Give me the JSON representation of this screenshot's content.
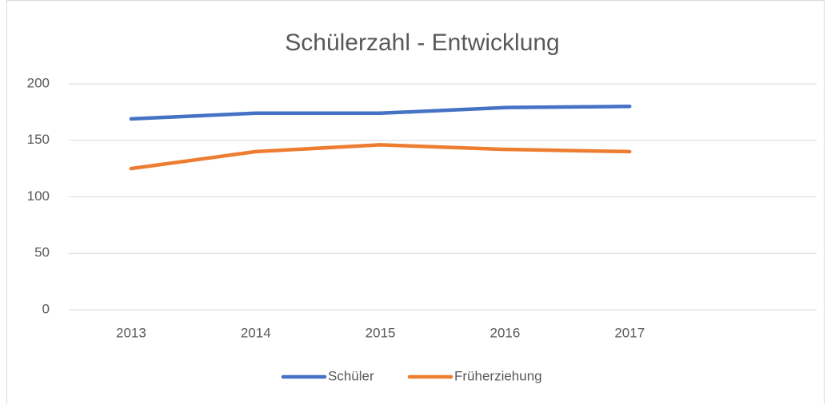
{
  "chart_data": {
    "type": "line",
    "title": "Schülerzahl - Entwicklung",
    "categories": [
      "2013",
      "2014",
      "2015",
      "2016",
      "2017",
      null
    ],
    "series": [
      {
        "name": "Schüler",
        "color": "#4472c4",
        "values": [
          169,
          174,
          174,
          179,
          180,
          null
        ]
      },
      {
        "name": "Früherziehung",
        "color": "#ed7d31",
        "values": [
          125,
          140,
          146,
          142,
          140,
          null
        ]
      }
    ],
    "ylim": [
      0,
      200
    ],
    "yticks": [
      0,
      50,
      100,
      150,
      200
    ],
    "grid": true,
    "legend": "bottom"
  }
}
